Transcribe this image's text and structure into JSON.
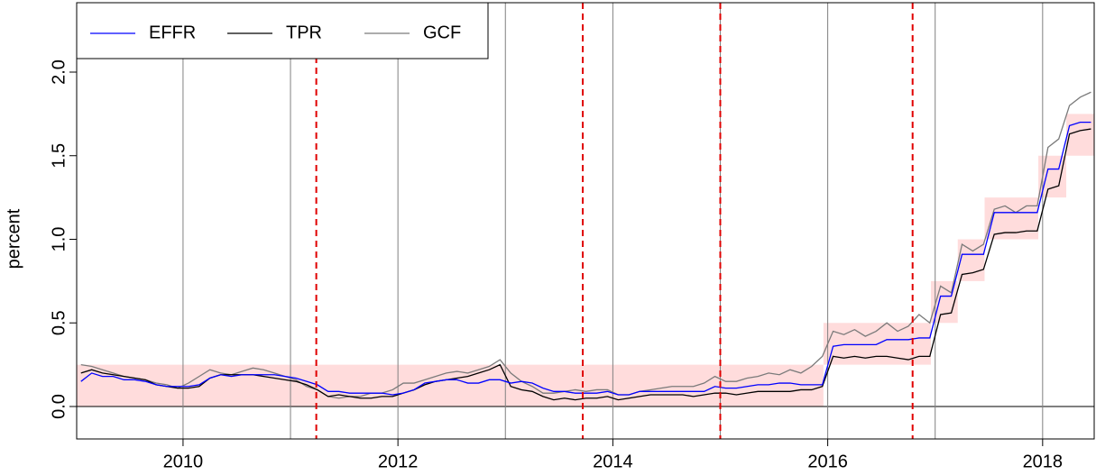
{
  "chart_data": {
    "type": "line",
    "y_label": "percent",
    "xlim": [
      2009.01,
      2018.48
    ],
    "ylim": [
      -0.194,
      2.415
    ],
    "xticks": [
      2010,
      2012,
      2014,
      2016,
      2018
    ],
    "yticks": [
      {
        "value": 0,
        "label": "0.0"
      },
      {
        "value": 0.5,
        "label": "0.5"
      },
      {
        "value": 1,
        "label": "1.0"
      },
      {
        "value": 1.5,
        "label": "1.5"
      },
      {
        "value": 2,
        "label": "2.0"
      }
    ],
    "legend": "top-left",
    "year_lines": [
      2010,
      2011,
      2012,
      2013,
      2014,
      2015,
      2016,
      2017,
      2018
    ],
    "year_line_color": "#808080",
    "event_lines": [
      2011.24,
      2013.72,
      2015.0,
      2016.79
    ],
    "event_line_color": "#e00000",
    "target_range": {
      "color": "#ffdcdc",
      "start": [
        2009.01,
        2015.96,
        2016.96,
        2017.21,
        2017.46,
        2017.96,
        2018.22
      ],
      "end": [
        2015.96,
        2016.96,
        2017.21,
        2017.46,
        2017.96,
        2018.22,
        2018.48
      ],
      "lower": [
        0,
        0.25,
        0.5,
        0.75,
        1.0,
        1.25,
        1.5
      ],
      "upper": [
        0.25,
        0.5,
        0.75,
        1.0,
        1.25,
        1.5,
        1.75
      ]
    },
    "x": [
      2009.05,
      2009.15,
      2009.25,
      2009.35,
      2009.45,
      2009.55,
      2009.65,
      2009.75,
      2009.85,
      2009.95,
      2010.05,
      2010.15,
      2010.25,
      2010.35,
      2010.45,
      2010.55,
      2010.65,
      2010.75,
      2010.85,
      2010.95,
      2011.05,
      2011.15,
      2011.25,
      2011.35,
      2011.45,
      2011.55,
      2011.65,
      2011.75,
      2011.85,
      2011.95,
      2012.05,
      2012.15,
      2012.25,
      2012.35,
      2012.45,
      2012.55,
      2012.65,
      2012.75,
      2012.85,
      2012.95,
      2013.05,
      2013.15,
      2013.25,
      2013.35,
      2013.45,
      2013.55,
      2013.65,
      2013.75,
      2013.85,
      2013.95,
      2014.05,
      2014.15,
      2014.25,
      2014.35,
      2014.45,
      2014.55,
      2014.65,
      2014.75,
      2014.85,
      2014.95,
      2015.05,
      2015.15,
      2015.25,
      2015.35,
      2015.45,
      2015.55,
      2015.65,
      2015.75,
      2015.85,
      2015.95,
      2016.05,
      2016.15,
      2016.25,
      2016.35,
      2016.45,
      2016.55,
      2016.65,
      2016.75,
      2016.85,
      2016.95,
      2017.05,
      2017.15,
      2017.25,
      2017.35,
      2017.45,
      2017.55,
      2017.65,
      2017.75,
      2017.85,
      2017.95,
      2018.05,
      2018.15,
      2018.25,
      2018.35,
      2018.45
    ],
    "series": [
      {
        "name": "EFFR",
        "color": "#0000ff",
        "values": [
          0.15,
          0.2,
          0.18,
          0.18,
          0.16,
          0.16,
          0.15,
          0.13,
          0.12,
          0.12,
          0.12,
          0.13,
          0.17,
          0.19,
          0.18,
          0.19,
          0.19,
          0.19,
          0.19,
          0.18,
          0.17,
          0.15,
          0.13,
          0.09,
          0.09,
          0.08,
          0.08,
          0.08,
          0.08,
          0.07,
          0.08,
          0.1,
          0.14,
          0.15,
          0.16,
          0.16,
          0.14,
          0.14,
          0.16,
          0.16,
          0.14,
          0.15,
          0.14,
          0.11,
          0.09,
          0.09,
          0.08,
          0.08,
          0.08,
          0.09,
          0.07,
          0.07,
          0.09,
          0.09,
          0.09,
          0.09,
          0.09,
          0.09,
          0.09,
          0.12,
          0.11,
          0.11,
          0.12,
          0.13,
          0.13,
          0.14,
          0.14,
          0.13,
          0.13,
          0.13,
          0.36,
          0.37,
          0.37,
          0.37,
          0.37,
          0.4,
          0.4,
          0.4,
          0.41,
          0.41,
          0.66,
          0.66,
          0.91,
          0.91,
          0.91,
          1.16,
          1.16,
          1.16,
          1.16,
          1.16,
          1.42,
          1.42,
          1.68,
          1.7,
          1.7
        ]
      },
      {
        "name": "TPR",
        "color": "#000000",
        "values": [
          0.2,
          0.22,
          0.2,
          0.19,
          0.18,
          0.17,
          0.16,
          0.13,
          0.12,
          0.11,
          0.11,
          0.12,
          0.17,
          0.19,
          0.19,
          0.19,
          0.19,
          0.18,
          0.17,
          0.16,
          0.15,
          0.13,
          0.1,
          0.06,
          0.07,
          0.06,
          0.05,
          0.05,
          0.06,
          0.06,
          0.08,
          0.1,
          0.13,
          0.15,
          0.16,
          0.17,
          0.18,
          0.2,
          0.22,
          0.25,
          0.12,
          0.1,
          0.09,
          0.06,
          0.04,
          0.05,
          0.04,
          0.05,
          0.05,
          0.06,
          0.04,
          0.05,
          0.06,
          0.07,
          0.07,
          0.07,
          0.07,
          0.06,
          0.07,
          0.08,
          0.08,
          0.07,
          0.08,
          0.09,
          0.09,
          0.09,
          0.09,
          0.1,
          0.1,
          0.12,
          0.3,
          0.29,
          0.3,
          0.29,
          0.3,
          0.3,
          0.29,
          0.28,
          0.3,
          0.3,
          0.55,
          0.56,
          0.79,
          0.8,
          0.82,
          1.03,
          1.04,
          1.04,
          1.05,
          1.05,
          1.3,
          1.32,
          1.63,
          1.65,
          1.66
        ]
      },
      {
        "name": "GCF",
        "color": "#7a7a7a",
        "values": [
          0.25,
          0.24,
          0.22,
          0.2,
          0.18,
          0.17,
          0.16,
          0.14,
          0.13,
          0.11,
          0.14,
          0.18,
          0.22,
          0.2,
          0.19,
          0.21,
          0.23,
          0.22,
          0.2,
          0.18,
          0.16,
          0.12,
          0.1,
          0.06,
          0.05,
          0.06,
          0.06,
          0.08,
          0.08,
          0.1,
          0.14,
          0.14,
          0.16,
          0.18,
          0.2,
          0.21,
          0.2,
          0.22,
          0.24,
          0.28,
          0.2,
          0.15,
          0.12,
          0.08,
          0.08,
          0.09,
          0.1,
          0.09,
          0.1,
          0.1,
          0.07,
          0.07,
          0.09,
          0.1,
          0.11,
          0.12,
          0.12,
          0.12,
          0.14,
          0.18,
          0.15,
          0.15,
          0.17,
          0.18,
          0.2,
          0.19,
          0.22,
          0.2,
          0.24,
          0.3,
          0.45,
          0.43,
          0.46,
          0.42,
          0.45,
          0.5,
          0.45,
          0.48,
          0.55,
          0.5,
          0.72,
          0.68,
          0.97,
          0.93,
          0.97,
          1.18,
          1.2,
          1.16,
          1.2,
          1.2,
          1.55,
          1.6,
          1.8,
          1.85,
          1.88
        ]
      }
    ]
  }
}
